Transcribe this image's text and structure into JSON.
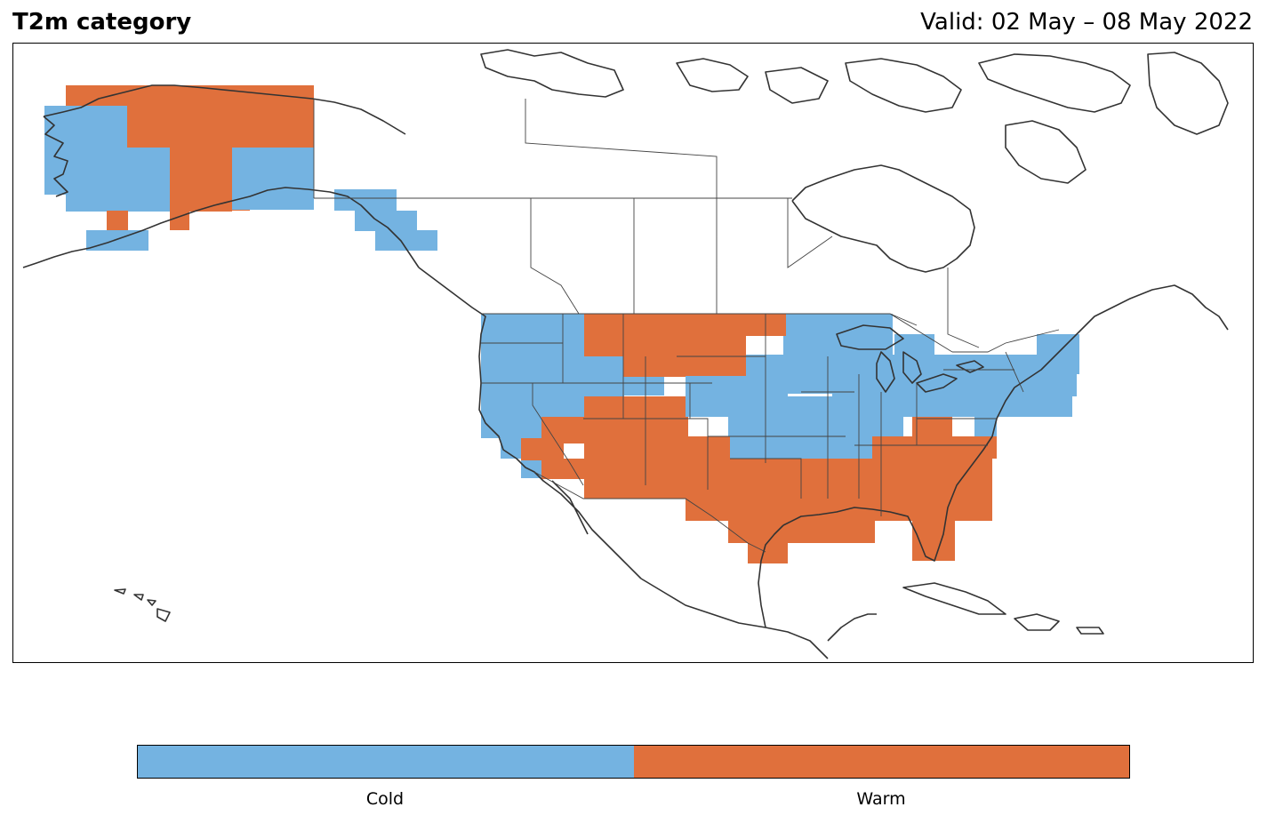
{
  "title": "T2m category",
  "valid": "Valid: 02 May – 08 May 2022",
  "categories": [
    {
      "label": "Cold",
      "color": "#74b3e1"
    },
    {
      "label": "Warm",
      "color": "#e0703c"
    }
  ],
  "colors": {
    "outline": "#333333",
    "frame": "#000000"
  }
}
